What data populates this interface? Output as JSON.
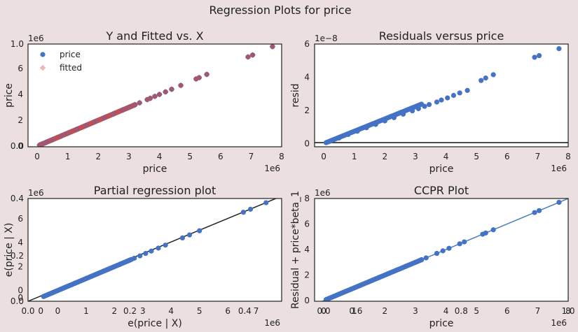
{
  "figure": {
    "suptitle": "Regression Plots for price",
    "colors": {
      "background": "#ebdfdf",
      "axes_face": "#ffffff",
      "blue": "#4472c4",
      "red": "#c44e52",
      "red_light": "#e8a0a4",
      "line_black": "#222222",
      "fit_blue": "#4a7cc0"
    }
  },
  "chart_data": [
    {
      "id": "yfit",
      "type": "scatter",
      "title": "Y and Fitted vs. X",
      "xlabel": "price",
      "ylabel": "price",
      "x_offset_text": "1e6",
      "y_offset_text": "1e6",
      "xlim": [
        -0.3,
        8.0
      ],
      "ylim": [
        -0.05,
        7.9
      ],
      "xticks": [
        0,
        1,
        2,
        3,
        4,
        5,
        6,
        7,
        8
      ],
      "xtick_labels": [
        "0",
        "1",
        "2",
        "3",
        "4",
        "5",
        "6",
        "7",
        "8"
      ],
      "yticks": [
        0,
        2,
        4,
        6
      ],
      "ytick_labels": [
        "0",
        "2",
        "4",
        "6"
      ],
      "overlay_yticks": [
        0.0,
        7.9
      ],
      "overlay_ytick_labels": [
        "0.0",
        "1.0"
      ],
      "legend": {
        "position": "top-left",
        "entries": [
          "price",
          "fitted"
        ]
      },
      "series": [
        {
          "name": "price",
          "marker": "circle",
          "color": "#4472c4",
          "points": [
            [
              0.08,
              0.08
            ],
            [
              0.15,
              0.15
            ],
            [
              0.3,
              0.3
            ],
            [
              0.5,
              0.5
            ],
            [
              0.8,
              0.8
            ],
            [
              1.0,
              1.0
            ],
            [
              1.3,
              1.3
            ],
            [
              1.6,
              1.6
            ],
            [
              1.9,
              1.9
            ],
            [
              2.2,
              2.2
            ],
            [
              2.5,
              2.5
            ],
            [
              2.8,
              2.8
            ],
            [
              3.0,
              3.0
            ],
            [
              3.2,
              3.2
            ],
            [
              3.35,
              3.35
            ],
            [
              3.6,
              3.6
            ],
            [
              3.7,
              3.7
            ],
            [
              3.85,
              3.85
            ],
            [
              4.0,
              4.0
            ],
            [
              4.2,
              4.2
            ],
            [
              4.4,
              4.4
            ],
            [
              4.7,
              4.7
            ],
            [
              5.2,
              5.2
            ],
            [
              5.3,
              5.3
            ],
            [
              5.55,
              5.55
            ],
            [
              6.9,
              6.9
            ],
            [
              7.05,
              7.05
            ],
            [
              7.7,
              7.7
            ]
          ]
        },
        {
          "name": "fitted",
          "marker": "diamond",
          "color": "#c44e52",
          "points": [
            [
              0.08,
              0.08
            ],
            [
              0.15,
              0.15
            ],
            [
              0.3,
              0.3
            ],
            [
              0.5,
              0.5
            ],
            [
              0.8,
              0.8
            ],
            [
              1.0,
              1.0
            ],
            [
              1.3,
              1.3
            ],
            [
              1.6,
              1.6
            ],
            [
              1.9,
              1.9
            ],
            [
              2.2,
              2.2
            ],
            [
              2.5,
              2.5
            ],
            [
              2.8,
              2.8
            ],
            [
              3.0,
              3.0
            ],
            [
              3.2,
              3.2
            ],
            [
              3.35,
              3.35
            ],
            [
              3.6,
              3.6
            ],
            [
              3.7,
              3.7
            ],
            [
              3.85,
              3.85
            ],
            [
              4.0,
              4.0
            ],
            [
              4.2,
              4.2
            ],
            [
              4.4,
              4.4
            ],
            [
              4.7,
              4.7
            ],
            [
              5.2,
              5.2
            ],
            [
              5.3,
              5.3
            ],
            [
              5.55,
              5.55
            ],
            [
              6.9,
              6.9
            ],
            [
              7.05,
              7.05
            ],
            [
              7.7,
              7.7
            ]
          ]
        }
      ],
      "dense_range": [
        0.08,
        3.2
      ]
    },
    {
      "id": "resid",
      "type": "scatter",
      "title": "Residuals versus price",
      "xlabel": "price",
      "ylabel": "resid",
      "x_offset_text": "1e6",
      "y_offset_text": "1e−8",
      "xlim": [
        -0.3,
        8.0
      ],
      "ylim": [
        -0.2,
        6.0
      ],
      "xticks": [
        0,
        1,
        2,
        3,
        4,
        5,
        6,
        7,
        8
      ],
      "xtick_labels": [
        "0",
        "1",
        "2",
        "3",
        "4",
        "5",
        "6",
        "7",
        "8"
      ],
      "yticks": [
        0,
        2,
        4,
        6
      ],
      "ytick_labels": [
        "0",
        "2",
        "4",
        "6"
      ],
      "hline": 0.05,
      "series": [
        {
          "name": "",
          "marker": "circle",
          "color": "#4472c4",
          "points": [
            [
              0.08,
              0.05
            ],
            [
              0.2,
              0.13
            ],
            [
              0.5,
              0.33
            ],
            [
              0.8,
              0.54
            ],
            [
              1.1,
              0.74
            ],
            [
              1.4,
              0.95
            ],
            [
              1.7,
              1.15
            ],
            [
              2.0,
              1.36
            ],
            [
              2.3,
              1.56
            ],
            [
              2.6,
              1.77
            ],
            [
              2.9,
              1.97
            ],
            [
              3.1,
              2.1
            ],
            [
              3.3,
              2.24
            ],
            [
              3.45,
              2.35
            ],
            [
              3.7,
              2.5
            ],
            [
              3.85,
              2.62
            ],
            [
              4.05,
              2.75
            ],
            [
              4.25,
              2.9
            ],
            [
              4.45,
              3.05
            ],
            [
              4.7,
              3.2
            ],
            [
              5.15,
              3.8
            ],
            [
              5.3,
              3.95
            ],
            [
              5.55,
              4.15
            ],
            [
              6.9,
              5.2
            ],
            [
              7.05,
              5.3
            ],
            [
              7.7,
              5.72
            ]
          ]
        }
      ],
      "dense_range": [
        0.08,
        3.2
      ]
    },
    {
      "id": "partreg",
      "type": "scatter",
      "title": "Partial regression plot",
      "xlabel": "e(price | X)",
      "ylabel": "e(price | X)",
      "x_offset_text": "1e6",
      "y_offset_text": "1e6",
      "xlim": [
        -1.05,
        7.9
      ],
      "ylim": [
        -0.9,
        7.7
      ],
      "xticks": [
        -0.6,
        0,
        1,
        2,
        3,
        4,
        5,
        6,
        7
      ],
      "xtick_labels": [
        "0",
        "0",
        "1",
        "2",
        "3",
        "4",
        "5",
        "6",
        "7"
      ],
      "yticks": [
        -0.6,
        0,
        2,
        4,
        6
      ],
      "ytick_labels": [
        "0",
        "0",
        "2",
        "4",
        "6"
      ],
      "overlay_xticks": [
        -1.05,
        2.55,
        6.6
      ],
      "overlay_xtick_labels": [
        "0.0",
        "0.2",
        "0.4"
      ],
      "overlay_yticks": [
        -0.9,
        2.9,
        7.7
      ],
      "overlay_ytick_labels": [
        "0.0",
        "0.2",
        "0.4"
      ],
      "fit_line": [
        [
          -1.05,
          -0.9
        ],
        [
          7.9,
          7.9
        ]
      ],
      "series": [
        {
          "name": "",
          "marker": "circle",
          "color": "#4472c4",
          "points": [
            [
              -0.5,
              -0.5
            ],
            [
              -0.2,
              -0.2
            ],
            [
              0.2,
              0.2
            ],
            [
              0.6,
              0.6
            ],
            [
              1.0,
              1.0
            ],
            [
              1.4,
              1.4
            ],
            [
              1.8,
              1.8
            ],
            [
              2.2,
              2.2
            ],
            [
              2.5,
              2.5
            ],
            [
              2.7,
              2.7
            ],
            [
              2.9,
              2.9
            ],
            [
              3.1,
              3.1
            ],
            [
              3.3,
              3.3
            ],
            [
              3.55,
              3.55
            ],
            [
              3.8,
              3.8
            ],
            [
              4.4,
              4.4
            ],
            [
              4.65,
              4.65
            ],
            [
              5.0,
              5.0
            ],
            [
              6.55,
              6.55
            ],
            [
              6.8,
              6.8
            ],
            [
              7.35,
              7.35
            ]
          ]
        }
      ],
      "dense_range": [
        -0.5,
        2.6
      ]
    },
    {
      "id": "ccpr",
      "type": "scatter",
      "title": "CCPR Plot",
      "xlabel": "price",
      "ylabel": "Residual + price*beta_1",
      "x_offset_text": "1e6",
      "y_offset_text": "1e6",
      "xlim": [
        -0.3,
        8.0
      ],
      "ylim": [
        -0.05,
        8.0
      ],
      "xticks": [
        0,
        1,
        2,
        3,
        4,
        5,
        6,
        7,
        8
      ],
      "xtick_labels": [
        "0",
        "1",
        "2",
        "3",
        "4",
        "5",
        "6",
        "7",
        "8"
      ],
      "yticks": [
        0,
        2,
        4,
        6,
        8
      ],
      "ytick_labels": [
        "0",
        "2",
        "4",
        "6",
        "8"
      ],
      "overlay_xticks": [
        0,
        1.05,
        4.5,
        8.0
      ],
      "overlay_xtick_labels": [
        "0.0",
        "0.6",
        "0.8",
        "1.0"
      ],
      "fit_line": [
        [
          -0.3,
          -0.3
        ],
        [
          8.0,
          8.0
        ]
      ],
      "series": [
        {
          "name": "",
          "marker": "circle",
          "color": "#4472c4",
          "points": [
            [
              0.08,
              0.08
            ],
            [
              0.3,
              0.3
            ],
            [
              0.6,
              0.6
            ],
            [
              0.9,
              0.9
            ],
            [
              1.2,
              1.2
            ],
            [
              1.5,
              1.5
            ],
            [
              1.8,
              1.8
            ],
            [
              2.1,
              2.1
            ],
            [
              2.4,
              2.4
            ],
            [
              2.7,
              2.7
            ],
            [
              3.0,
              3.0
            ],
            [
              3.2,
              3.2
            ],
            [
              3.35,
              3.35
            ],
            [
              3.7,
              3.7
            ],
            [
              3.9,
              3.9
            ],
            [
              4.1,
              4.1
            ],
            [
              4.45,
              4.45
            ],
            [
              4.6,
              4.6
            ],
            [
              5.2,
              5.2
            ],
            [
              5.3,
              5.3
            ],
            [
              5.55,
              5.55
            ],
            [
              6.9,
              6.9
            ],
            [
              7.05,
              7.05
            ],
            [
              7.7,
              7.7
            ]
          ]
        }
      ],
      "dense_range": [
        0.08,
        3.2
      ]
    }
  ]
}
